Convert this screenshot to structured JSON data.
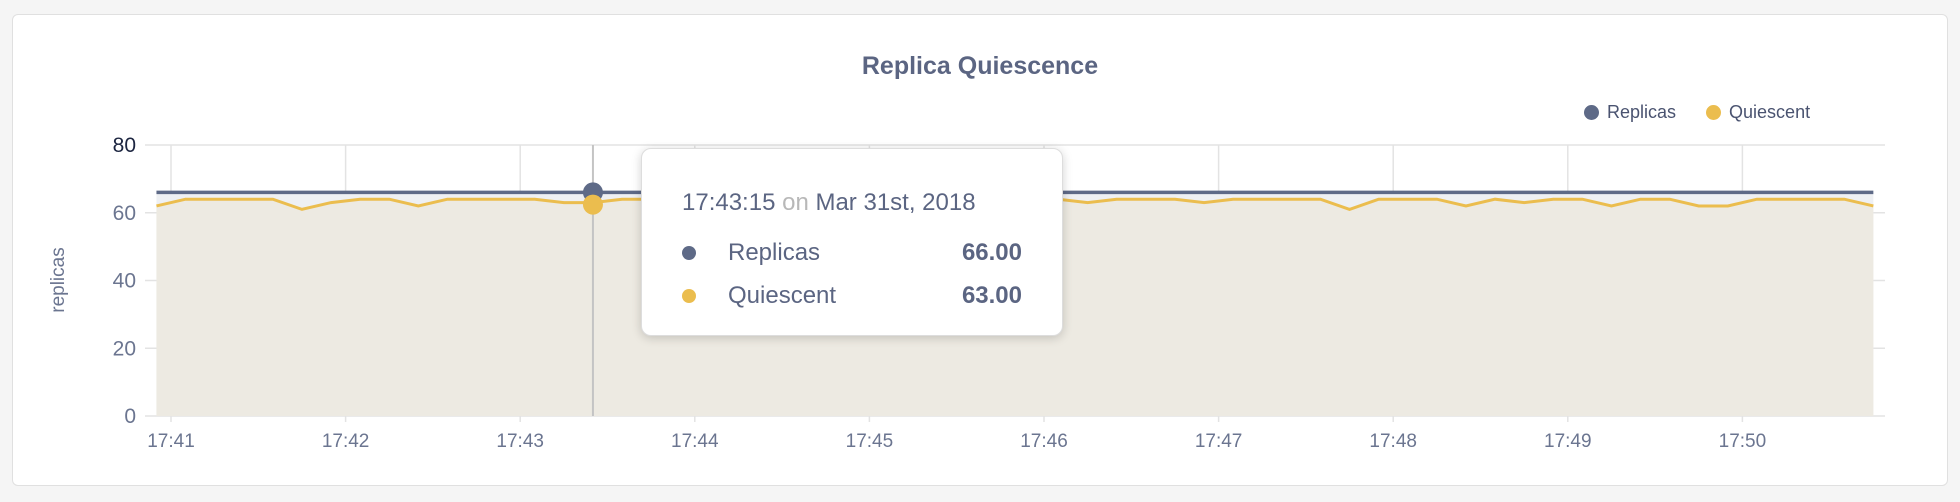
{
  "chart_data": {
    "type": "area",
    "title": "Replica Quiescence",
    "xlabel": "",
    "ylabel": "replicas",
    "ylim": [
      0,
      80
    ],
    "yticks": [
      "0",
      "20",
      "40",
      "60",
      "80"
    ],
    "xticks": [
      "17:41",
      "17:42",
      "17:43",
      "17:44",
      "17:45",
      "17:46",
      "17:47",
      "17:48",
      "17:49",
      "17:50"
    ],
    "grid": true,
    "legend_position": "top-right",
    "x": [
      "17:40:55",
      "17:41:05",
      "17:41:15",
      "17:41:25",
      "17:41:35",
      "17:41:45",
      "17:41:55",
      "17:42:05",
      "17:42:15",
      "17:42:25",
      "17:42:35",
      "17:42:45",
      "17:42:55",
      "17:43:05",
      "17:43:15",
      "17:43:25",
      "17:43:35",
      "17:43:45",
      "17:43:55",
      "17:44:05",
      "17:44:15",
      "17:44:25",
      "17:44:35",
      "17:44:45",
      "17:44:55",
      "17:45:05",
      "17:45:15",
      "17:45:25",
      "17:45:35",
      "17:45:45",
      "17:45:55",
      "17:46:05",
      "17:46:15",
      "17:46:25",
      "17:46:35",
      "17:46:45",
      "17:46:55",
      "17:47:05",
      "17:47:15",
      "17:47:25",
      "17:47:35",
      "17:47:45",
      "17:47:55",
      "17:48:05",
      "17:48:15",
      "17:48:25",
      "17:48:35",
      "17:48:45",
      "17:48:55",
      "17:49:05",
      "17:49:15",
      "17:49:25",
      "17:49:35",
      "17:49:45",
      "17:49:55",
      "17:50:05",
      "17:50:15",
      "17:50:25",
      "17:50:35",
      "17:50:45"
    ],
    "series": [
      {
        "name": "Replicas",
        "color": "#5e6a87",
        "values": [
          66,
          66,
          66,
          66,
          66,
          66,
          66,
          66,
          66,
          66,
          66,
          66,
          66,
          66,
          66,
          66,
          66,
          66,
          66,
          66,
          66,
          66,
          66,
          66,
          66,
          66,
          66,
          66,
          66,
          66,
          66,
          66,
          66,
          66,
          66,
          66,
          66,
          66,
          66,
          66,
          66,
          66,
          66,
          66,
          66,
          66,
          66,
          66,
          66,
          66,
          66,
          66,
          66,
          66,
          66,
          66,
          66,
          66,
          66,
          66
        ]
      },
      {
        "name": "Quiescent",
        "color": "#ebbd4e",
        "values": [
          62,
          64,
          64,
          64,
          64,
          61,
          63,
          64,
          64,
          62,
          64,
          64,
          64,
          64,
          63,
          63,
          64,
          64,
          63,
          64,
          64,
          64,
          64,
          64,
          64,
          64,
          64,
          64,
          64,
          64,
          64,
          64,
          63,
          64,
          64,
          64,
          63,
          64,
          64,
          64,
          64,
          61,
          64,
          64,
          64,
          62,
          64,
          63,
          64,
          64,
          62,
          64,
          64,
          62,
          62,
          64,
          64,
          64,
          64,
          62
        ]
      }
    ],
    "tooltip": {
      "time": "17:43:15",
      "on": "on",
      "date": "Mar 31st, 2018",
      "rows": [
        {
          "label": "Replicas",
          "value": "66.00"
        },
        {
          "label": "Quiescent",
          "value": "63.00"
        }
      ]
    }
  }
}
